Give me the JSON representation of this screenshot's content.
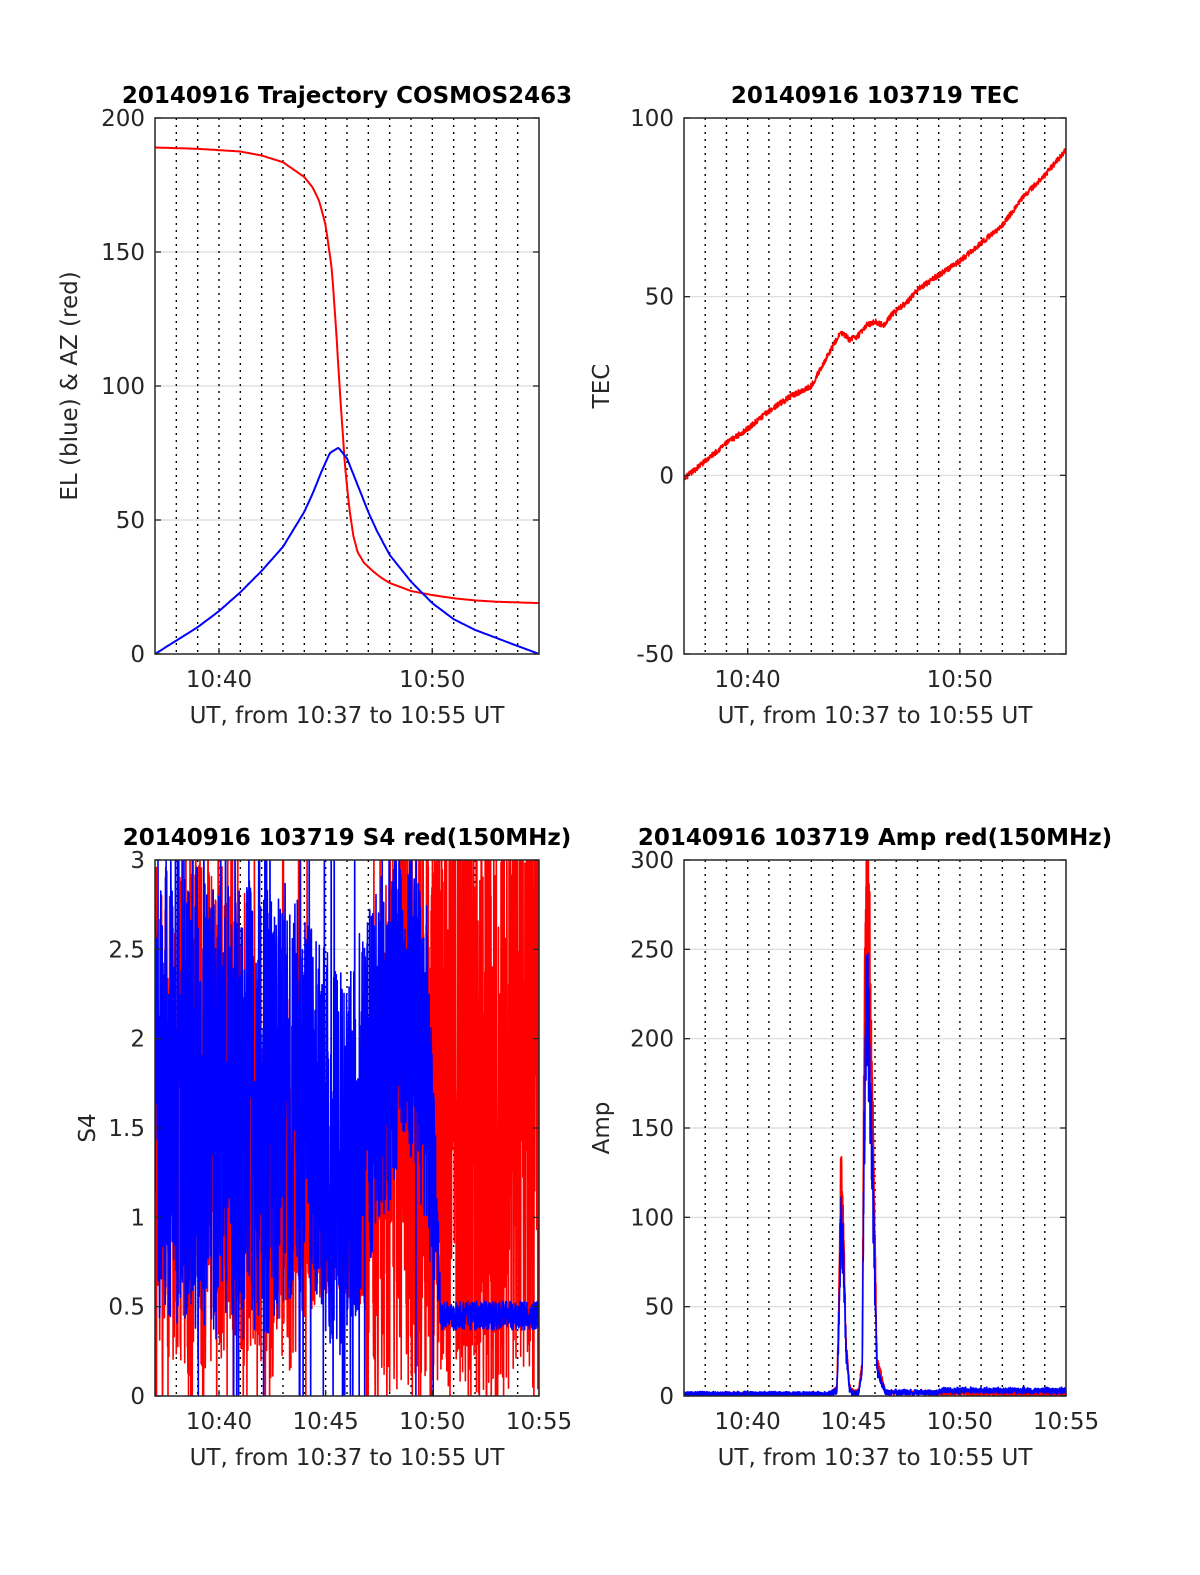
{
  "colors": {
    "azimuth": "#ff0000",
    "elevation": "#0000ff",
    "red_signal": "#ff0000",
    "blue_signal": "#0000ff",
    "grid": "#000000",
    "hgrid": "#d9d9d9",
    "axes": "#262626"
  },
  "chart_data": [
    {
      "id": "trajectory",
      "type": "line",
      "title": "20140916 Trajectory COSMOS2463",
      "xlabel": "UT, from 10:37 to 10:55 UT",
      "ylabel": "EL (blue) & AZ (red)",
      "xlim": [
        10.6167,
        10.9167
      ],
      "ylim": [
        0,
        200
      ],
      "xticks": [
        10.6667,
        10.8333
      ],
      "xtick_labels": [
        "10:40",
        "10:50"
      ],
      "yticks": [
        0,
        50,
        100,
        150,
        200
      ],
      "ytick_labels": [
        "0",
        "50",
        "100",
        "150",
        "200"
      ],
      "grid": {
        "vertical_dotted": true,
        "horizontal": true
      },
      "series": [
        {
          "color": "#ff0000",
          "kind": "smooth",
          "x": [
            10.6167,
            10.65,
            10.6833,
            10.7,
            10.7167,
            10.7333,
            10.74,
            10.745,
            10.75,
            10.755,
            10.7583,
            10.7617,
            10.765,
            10.7683,
            10.7717,
            10.775,
            10.78,
            10.7867,
            10.7933,
            10.8,
            10.8167,
            10.8333,
            10.85,
            10.8667,
            10.8833,
            10.9167
          ],
          "values": [
            189,
            188.5,
            187.5,
            186,
            183.5,
            178,
            174,
            169,
            160,
            143,
            120,
            94,
            71,
            55,
            44,
            38,
            34,
            31,
            28.5,
            26.5,
            23.5,
            22,
            20.8,
            20,
            19.5,
            19
          ]
        },
        {
          "color": "#0000ff",
          "kind": "smooth",
          "x": [
            10.6167,
            10.6333,
            10.65,
            10.6667,
            10.6833,
            10.7,
            10.7167,
            10.7333,
            10.74,
            10.7467,
            10.7533,
            10.76,
            10.7667,
            10.7717,
            10.7767,
            10.7833,
            10.79,
            10.8,
            10.8167,
            10.8333,
            10.85,
            10.8667,
            10.8833,
            10.9,
            10.9167
          ],
          "values": [
            0,
            5,
            10,
            16,
            23,
            31,
            40,
            53,
            60,
            68,
            75,
            77,
            73,
            67,
            61,
            53,
            46,
            37,
            27,
            19,
            13,
            9,
            6,
            3,
            0
          ]
        }
      ]
    },
    {
      "id": "tec",
      "type": "line",
      "title": "20140916 103719 TEC",
      "xlabel": "UT, from 10:37 to 10:55 UT",
      "ylabel": "TEC",
      "xlim": [
        10.6167,
        10.9167
      ],
      "ylim": [
        -50,
        100
      ],
      "xticks": [
        10.6667,
        10.8333
      ],
      "xtick_labels": [
        "10:40",
        "10:50"
      ],
      "yticks": [
        -50,
        0,
        50,
        100
      ],
      "ytick_labels": [
        "-50",
        "0",
        "50",
        "100"
      ],
      "grid": {
        "vertical_dotted": true,
        "horizontal": true
      },
      "series": [
        {
          "color": "#ff0000",
          "kind": "noisy",
          "noise": 0.8,
          "x": [
            10.6167,
            10.6333,
            10.65,
            10.6667,
            10.6833,
            10.7,
            10.7167,
            10.7333,
            10.74,
            10.7467,
            10.7533,
            10.76,
            10.7667,
            10.7733,
            10.78,
            10.7867,
            10.7933,
            10.8,
            10.8167,
            10.8333,
            10.85,
            10.8667,
            10.8833,
            10.9,
            10.9167
          ],
          "values": [
            -1,
            4,
            9,
            13,
            18,
            22,
            25,
            36,
            40,
            38,
            39,
            42,
            43,
            42,
            45,
            47,
            49,
            52,
            56,
            60,
            65,
            70,
            78,
            84,
            91
          ]
        }
      ]
    },
    {
      "id": "s4",
      "type": "line",
      "title": "20140916 103719 S4 red(150MHz)",
      "xlabel": "UT, from 10:37 to 10:55 UT",
      "ylabel": "S4",
      "xlim": [
        10.6167,
        10.9167
      ],
      "ylim": [
        0,
        3
      ],
      "xticks": [
        10.6667,
        10.75,
        10.8333,
        10.9167
      ],
      "xtick_labels": [
        "10:40",
        "10:45",
        "10:50",
        "10:55"
      ],
      "yticks": [
        0,
        0.5,
        1,
        1.5,
        2,
        2.5,
        3
      ],
      "ytick_labels": [
        "0",
        "0.5",
        "1",
        "1.5",
        "2",
        "2.5",
        "3"
      ],
      "grid": {
        "vertical_dotted": true,
        "horizontal": true
      },
      "series": [
        {
          "color": "#ff0000",
          "kind": "scint",
          "x": [
            10.6167,
            10.6667,
            10.7,
            10.72,
            10.74,
            10.76,
            10.77,
            10.78,
            10.79,
            10.8,
            10.81,
            10.82,
            10.84,
            10.86,
            10.88,
            10.9167
          ],
          "values": [
            1.5,
            1.6,
            1.4,
            1.3,
            0.9,
            0.9,
            0.8,
            0.9,
            1.2,
            1.5,
            1.8,
            1.8,
            1.8,
            1.8,
            1.8,
            1.8
          ],
          "amp": [
            1.5,
            1.4,
            1.3,
            1.2,
            0.4,
            0.3,
            0.3,
            0.4,
            1.3,
            1.5,
            1.8,
            1.8,
            1.8,
            1.8,
            1.8,
            1.8
          ]
        },
        {
          "color": "#0000ff",
          "kind": "scint",
          "x": [
            10.6167,
            10.64,
            10.6667,
            10.7,
            10.72,
            10.74,
            10.75,
            10.76,
            10.77,
            10.78,
            10.79,
            10.8,
            10.81,
            10.82,
            10.83,
            10.84,
            10.86,
            10.88,
            10.9167
          ],
          "values": [
            1.8,
            1.7,
            1.6,
            1.6,
            1.7,
            1.6,
            1.4,
            1.3,
            1.4,
            1.6,
            1.9,
            2.0,
            2.3,
            2.1,
            1.8,
            0.45,
            0.45,
            0.45,
            0.45
          ],
          "amp": [
            1.4,
            1.3,
            1.3,
            1.3,
            1.2,
            1.0,
            1.1,
            1.1,
            1.0,
            1.1,
            1.0,
            1.0,
            0.8,
            0.9,
            1.0,
            0.08,
            0.08,
            0.08,
            0.08
          ]
        }
      ]
    },
    {
      "id": "amp",
      "type": "line",
      "title": "20140916 103719 Amp red(150MHz)",
      "xlabel": "UT, from 10:37 to 10:55 UT",
      "ylabel": "Amp",
      "xlim": [
        10.6167,
        10.9167
      ],
      "ylim": [
        0,
        300
      ],
      "xticks": [
        10.6667,
        10.75,
        10.8333,
        10.9167
      ],
      "xtick_labels": [
        "10:40",
        "10:45",
        "10:50",
        "10:55"
      ],
      "yticks": [
        0,
        50,
        100,
        150,
        200,
        250,
        300
      ],
      "ytick_labels": [
        "0",
        "50",
        "100",
        "150",
        "200",
        "250",
        "300"
      ],
      "grid": {
        "vertical_dotted": true,
        "horizontal": true
      },
      "series": [
        {
          "color": "#ff0000",
          "kind": "spiky",
          "x": [
            10.6167,
            10.73,
            10.7367,
            10.738,
            10.74,
            10.742,
            10.744,
            10.7467,
            10.75,
            10.754,
            10.7567,
            10.758,
            10.76,
            10.762,
            10.765,
            10.7683,
            10.775,
            10.9167
          ],
          "values": [
            1,
            1,
            4,
            40,
            125,
            90,
            30,
            5,
            2,
            3,
            20,
            180,
            275,
            260,
            150,
            20,
            2,
            1
          ],
          "noise": 2
        },
        {
          "color": "#0000ff",
          "kind": "spiky",
          "x": [
            10.6167,
            10.73,
            10.7367,
            10.738,
            10.74,
            10.742,
            10.744,
            10.7467,
            10.75,
            10.754,
            10.7567,
            10.758,
            10.76,
            10.762,
            10.765,
            10.7683,
            10.775,
            10.8167,
            10.82,
            10.9167
          ],
          "values": [
            1,
            1,
            3,
            30,
            95,
            75,
            25,
            4,
            1,
            2,
            15,
            130,
            215,
            200,
            110,
            15,
            2,
            2,
            3,
            3
          ],
          "noise": 3
        }
      ]
    }
  ]
}
